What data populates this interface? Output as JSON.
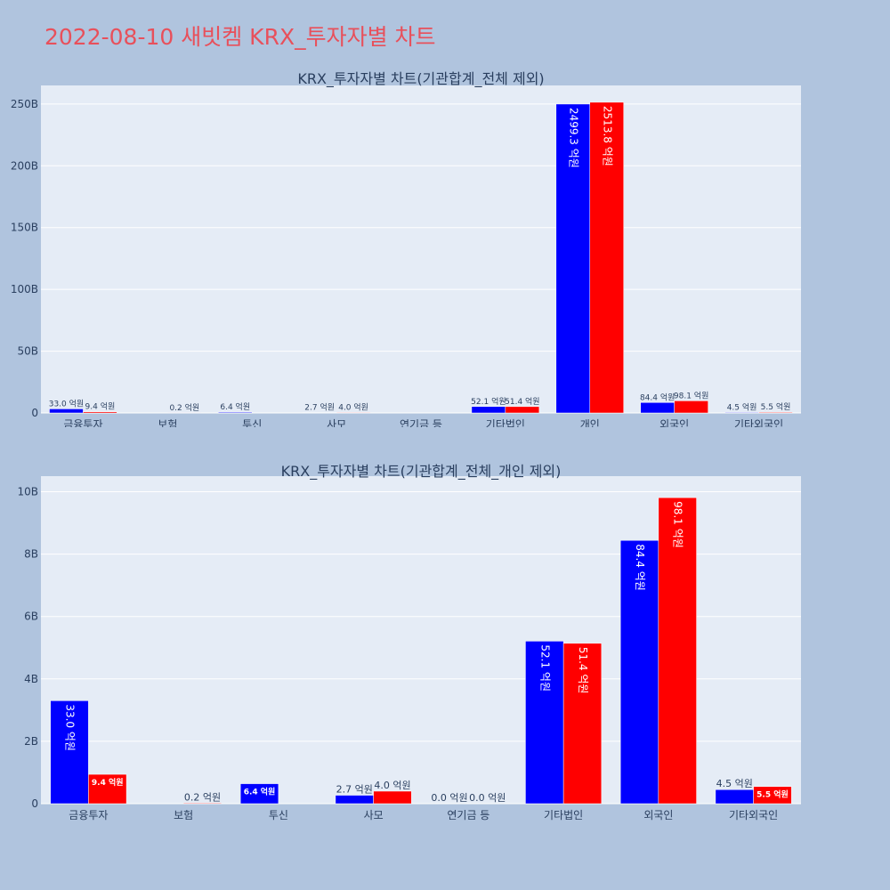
{
  "page": {
    "title": "2022-08-10 새빗켐 KRX_투자자별 차트"
  },
  "colors": {
    "background": "#b0c4de",
    "plot_bg": "#e5ecf6",
    "title": "#e8505b",
    "series_a": "#0000ff",
    "series_b": "#ff0000"
  },
  "chart_data": [
    {
      "type": "bar",
      "title": "KRX_투자자별 차트(기관합계_전체 제외)",
      "categories": [
        "금융투자",
        "보험",
        "투신",
        "사모",
        "연기금 등",
        "기타법인",
        "개인",
        "외국인",
        "기타외국인"
      ],
      "ylim": [
        0,
        265
      ],
      "yticks": [
        0,
        50,
        100,
        150,
        200,
        250
      ],
      "ytick_labels": [
        "0",
        "50B",
        "100B",
        "150B",
        "200B",
        "250B"
      ],
      "grid": true,
      "series": [
        {
          "color": "#0000ff",
          "values": [
            3.3,
            null,
            0.64,
            0.27,
            null,
            5.21,
            249.93,
            8.44,
            0.45
          ],
          "labels": [
            "33.0 억원",
            "",
            "6.4 억원",
            "2.7 억원",
            "",
            "52.1 억원",
            "2499.3 억원",
            "84.4 억원",
            "4.5 억원"
          ]
        },
        {
          "color": "#ff0000",
          "values": [
            0.94,
            0.02,
            null,
            0.4,
            null,
            5.14,
            251.38,
            9.81,
            0.55
          ],
          "labels": [
            "9.4 억원",
            "0.2 억원",
            "",
            "4.0 억원",
            "",
            "51.4 억원",
            "2513.8 억원",
            "98.1 억원",
            "5.5 억원"
          ]
        }
      ]
    },
    {
      "type": "bar",
      "title": "KRX_투자자별 차트(기관합계_전체_개인 제외)",
      "categories": [
        "금융투자",
        "보험",
        "투신",
        "사모",
        "연기금 등",
        "기타법인",
        "외국인",
        "기타외국인"
      ],
      "ylim": [
        0,
        10.5
      ],
      "yticks": [
        0,
        2,
        4,
        6,
        8,
        10
      ],
      "ytick_labels": [
        "0",
        "2B",
        "4B",
        "6B",
        "8B",
        "10B"
      ],
      "grid": true,
      "series": [
        {
          "color": "#0000ff",
          "values": [
            3.3,
            null,
            0.64,
            0.27,
            0.0,
            5.21,
            8.44,
            0.45
          ],
          "labels": [
            "33.0 억원",
            "",
            "6.4 억원",
            "2.7 억원",
            "0.0 억원",
            "52.1 억원",
            "84.4 억원",
            "4.5 억원"
          ]
        },
        {
          "color": "#ff0000",
          "values": [
            0.94,
            0.02,
            null,
            0.4,
            0.0,
            5.14,
            9.81,
            0.55
          ],
          "labels": [
            "9.4 억원",
            "0.2 억원",
            "",
            "4.0 억원",
            "0.0 억원",
            "51.4 억원",
            "98.1 억원",
            "5.5 억원"
          ]
        }
      ]
    }
  ]
}
